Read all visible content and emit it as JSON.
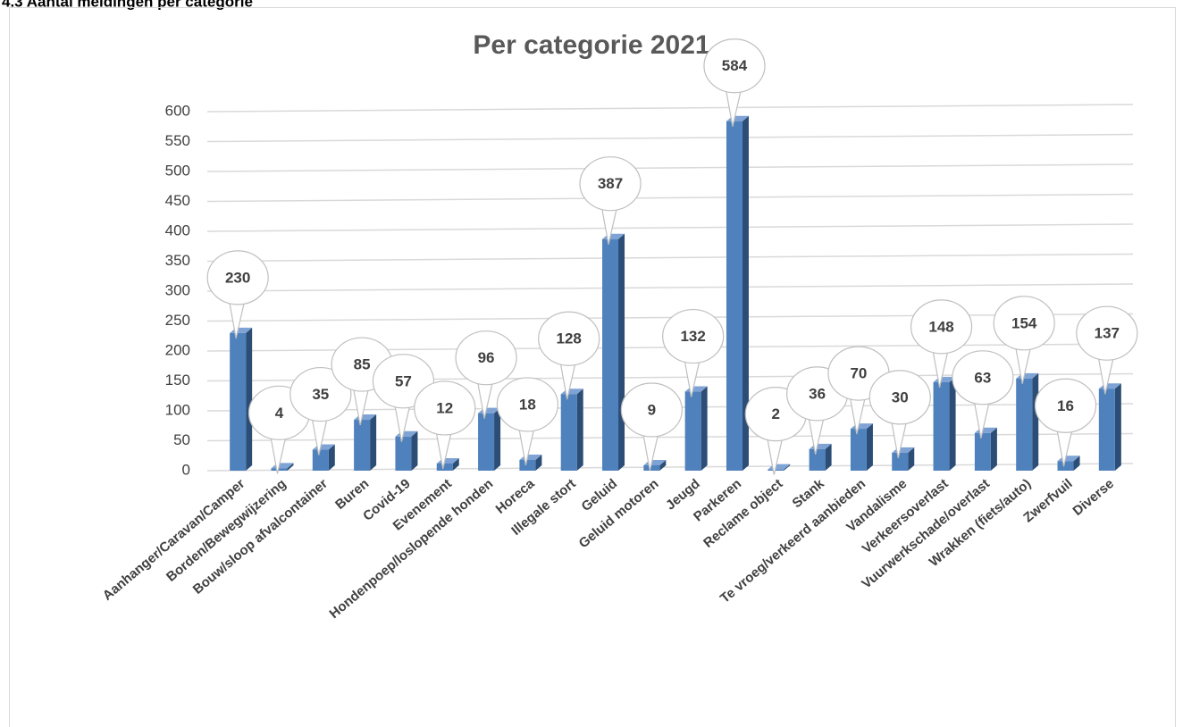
{
  "heading": "4.3 Aantal meldingen per categorie",
  "chart_data": {
    "type": "bar",
    "title": "Per categorie 2021",
    "categories": [
      "Aanhanger/Caravan/Camper",
      "Borden/Bewegwijzering",
      "Bouw/sloop afvalcontainer",
      "Buren",
      "Covid-19",
      "Evenement",
      "Hondenpoep/loslopende honden",
      "Horeca",
      "Illegale stort",
      "Geluid",
      "Geluid motoren",
      "Jeugd",
      "Parkeren",
      "Reclame object",
      "Stank",
      "Te vroeg/verkeerd aanbieden",
      "Vandalisme",
      "Verkeersoverlast",
      "Vuurwerkschade/overlast",
      "Wrakken (fiets/auto)",
      "Zwerfvuil",
      "Diverse"
    ],
    "values": [
      230,
      4,
      35,
      85,
      57,
      12,
      96,
      18,
      128,
      387,
      9,
      132,
      584,
      2,
      36,
      70,
      30,
      148,
      63,
      154,
      16,
      137
    ],
    "color": "#4f81bd",
    "ylim": [
      0,
      600
    ],
    "yticks": [
      0,
      50,
      100,
      150,
      200,
      250,
      300,
      350,
      400,
      450,
      500,
      550,
      600
    ],
    "grid": true
  }
}
